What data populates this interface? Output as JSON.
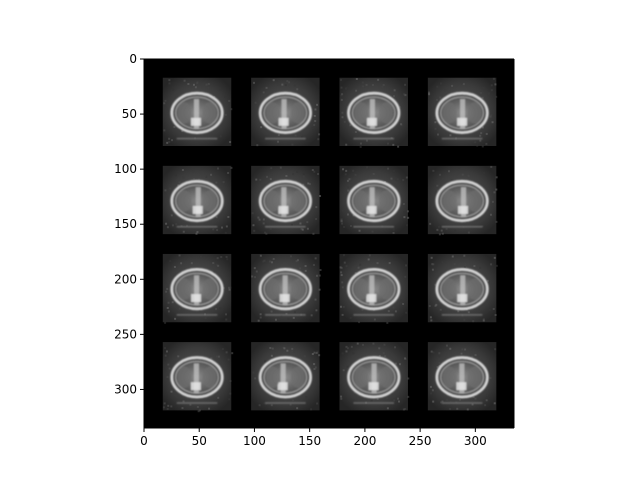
{
  "figure": {
    "background": "#ffffff",
    "image_background": "#000000",
    "image_extent": {
      "x": [
        0,
        335
      ],
      "y": [
        0,
        335
      ]
    },
    "x_ticks": [
      {
        "value": 0,
        "label": "0"
      },
      {
        "value": 50,
        "label": "50"
      },
      {
        "value": 100,
        "label": "100"
      },
      {
        "value": 150,
        "label": "150"
      },
      {
        "value": 200,
        "label": "200"
      },
      {
        "value": 250,
        "label": "250"
      },
      {
        "value": 300,
        "label": "300"
      }
    ],
    "y_ticks": [
      {
        "value": 0,
        "label": "0"
      },
      {
        "value": 50,
        "label": "50"
      },
      {
        "value": 100,
        "label": "100"
      },
      {
        "value": 150,
        "label": "150"
      },
      {
        "value": 200,
        "label": "200"
      },
      {
        "value": 250,
        "label": "250"
      },
      {
        "value": 300,
        "label": "300"
      }
    ],
    "grid": {
      "rows": 4,
      "cols": 4,
      "tile_content": "grayscale axial CT slice"
    }
  }
}
